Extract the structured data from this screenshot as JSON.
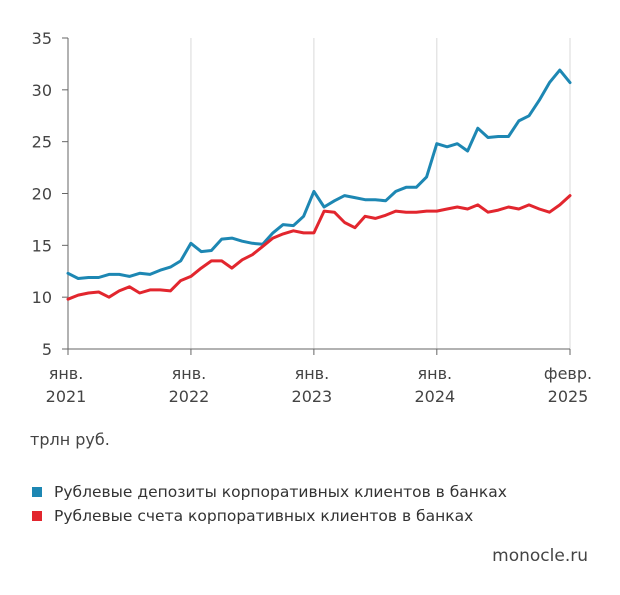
{
  "chart_data": {
    "type": "line",
    "unit": "трлн руб.",
    "ylim": [
      5,
      35
    ],
    "yticks": [
      5,
      10,
      15,
      20,
      25,
      30,
      35
    ],
    "xlim": [
      "2021-01",
      "2025-02"
    ],
    "x_ticks": [
      {
        "date": "2021-01",
        "line1": "янв.",
        "line2": "2021"
      },
      {
        "date": "2022-01",
        "line1": "янв.",
        "line2": "2022"
      },
      {
        "date": "2023-01",
        "line1": "янв.",
        "line2": "2023"
      },
      {
        "date": "2024-01",
        "line1": "янв.",
        "line2": "2024"
      },
      {
        "date": "2025-02",
        "line1": "февр.",
        "line2": "2025"
      }
    ],
    "grid": "vertical",
    "legend_position": "bottom",
    "x": [
      "2021-01",
      "2021-02",
      "2021-03",
      "2021-04",
      "2021-05",
      "2021-06",
      "2021-07",
      "2021-08",
      "2021-09",
      "2021-10",
      "2021-11",
      "2021-12",
      "2022-01",
      "2022-02",
      "2022-03",
      "2022-04",
      "2022-05",
      "2022-06",
      "2022-07",
      "2022-08",
      "2022-09",
      "2022-10",
      "2022-11",
      "2022-12",
      "2023-01",
      "2023-02",
      "2023-03",
      "2023-04",
      "2023-05",
      "2023-06",
      "2023-07",
      "2023-08",
      "2023-09",
      "2023-10",
      "2023-11",
      "2023-12",
      "2024-01",
      "2024-02",
      "2024-03",
      "2024-04",
      "2024-05",
      "2024-06",
      "2024-07",
      "2024-08",
      "2024-09",
      "2024-10",
      "2024-11",
      "2024-12",
      "2025-01",
      "2025-02"
    ],
    "series": [
      {
        "name": "Рублевые депозиты корпоративных клиентов в банках",
        "color": "#1d87b3",
        "values": [
          12.3,
          11.8,
          11.9,
          11.9,
          12.2,
          12.2,
          12.0,
          12.3,
          12.2,
          12.6,
          12.9,
          13.5,
          15.2,
          14.4,
          14.5,
          15.6,
          15.7,
          15.4,
          15.2,
          15.1,
          16.2,
          17.0,
          16.9,
          17.8,
          20.2,
          18.7,
          19.3,
          19.8,
          19.6,
          19.4,
          19.4,
          19.3,
          20.2,
          20.6,
          20.6,
          21.6,
          24.8,
          24.5,
          24.8,
          24.1,
          26.3,
          25.4,
          25.5,
          25.5,
          27.0,
          27.5,
          29.0,
          30.7,
          31.9,
          30.7
        ]
      },
      {
        "name": "Рублевые счета корпоративных клиентов в банках",
        "color": "#e2262e",
        "values": [
          9.8,
          10.2,
          10.4,
          10.5,
          10.0,
          10.6,
          11.0,
          10.4,
          10.7,
          10.7,
          10.6,
          11.6,
          12.0,
          12.8,
          13.5,
          13.5,
          12.8,
          13.6,
          14.1,
          14.9,
          15.7,
          16.1,
          16.4,
          16.2,
          16.2,
          18.3,
          18.2,
          17.2,
          16.7,
          17.8,
          17.6,
          17.9,
          18.3,
          18.2,
          18.2,
          18.3,
          18.3,
          18.5,
          18.7,
          18.5,
          18.9,
          18.2,
          18.4,
          18.7,
          18.5,
          18.9,
          18.5,
          18.2,
          18.9,
          19.8
        ]
      }
    ]
  },
  "source": "monocle.ru"
}
